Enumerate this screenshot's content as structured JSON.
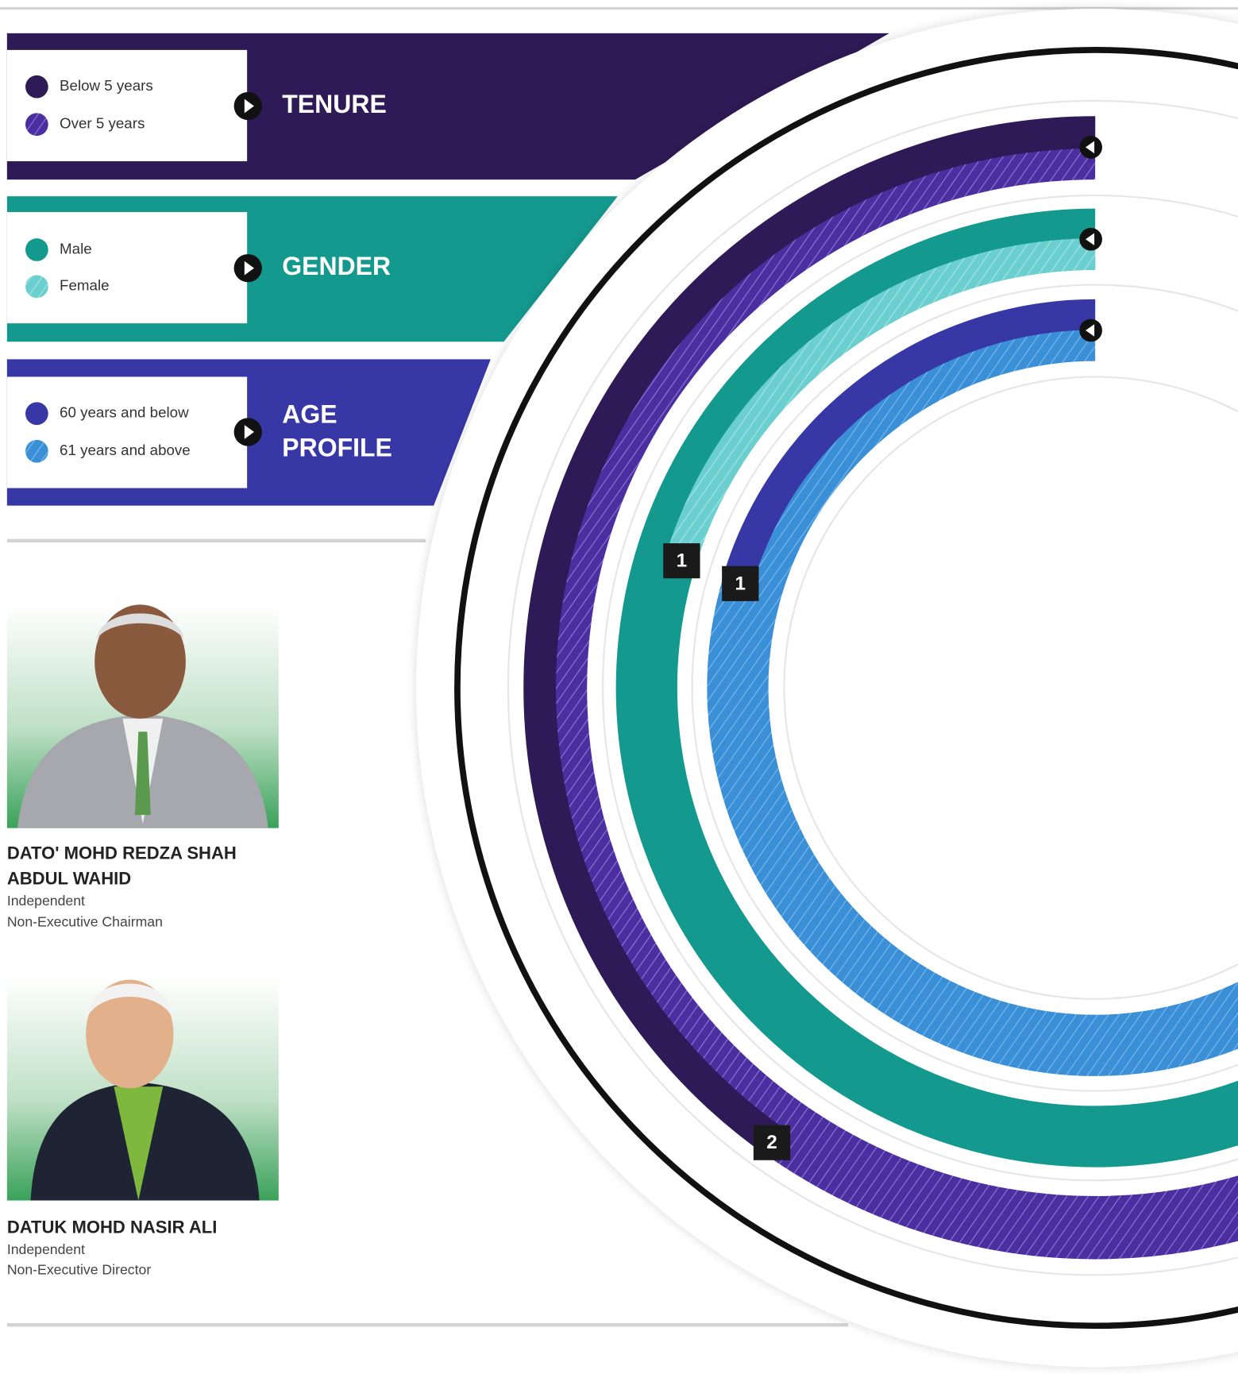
{
  "legend_panels": [
    {
      "title_lines": [
        "TENURE"
      ],
      "items": [
        "Below 5 years",
        "Over 5 years"
      ]
    },
    {
      "title_lines": [
        "GENDER"
      ],
      "items": [
        "Male",
        "Female"
      ]
    },
    {
      "title_lines": [
        "AGE",
        "PROFILE"
      ],
      "items": [
        "60 years and below",
        "61 years and above"
      ]
    }
  ],
  "ring_labels": [
    "1",
    "1",
    "2"
  ],
  "people": [
    {
      "name_lines": [
        "DATO' MOHD REDZA SHAH",
        "ABDUL WAHID"
      ],
      "role_lines": [
        "Independent",
        "Non-Executive Chairman"
      ]
    },
    {
      "name_lines": [
        "DATUK MOHD NASIR ALI"
      ],
      "role_lines": [
        "Independent",
        "Non-Executive Director"
      ]
    }
  ]
}
